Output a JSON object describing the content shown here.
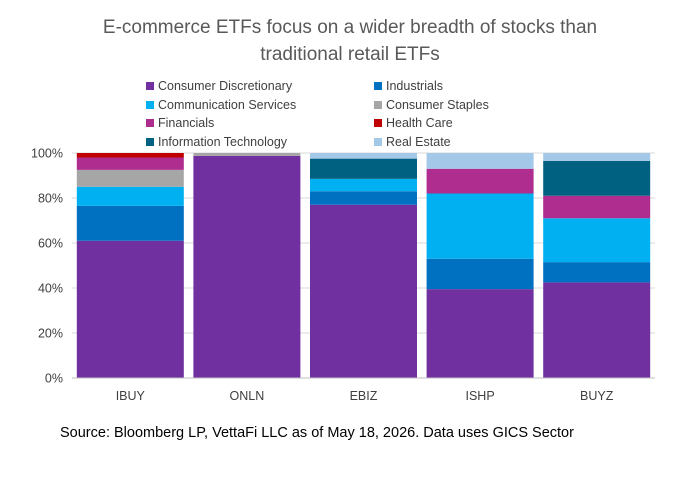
{
  "chart_data": {
    "type": "bar",
    "stacked": true,
    "title_lines": [
      "E-commerce ETFs focus on a wider breadth of stocks than",
      "traditional retail ETFs"
    ],
    "xlabel": "",
    "ylabel": "",
    "ylim": [
      0,
      100
    ],
    "y_ticks": [
      "0%",
      "20%",
      "40%",
      "60%",
      "80%",
      "100%"
    ],
    "y_tick_values": [
      0,
      20,
      40,
      60,
      80,
      100
    ],
    "grid": true,
    "legend_position": "top",
    "categories": [
      "IBUY",
      "ONLN",
      "EBIZ",
      "ISHP",
      "BUYZ"
    ],
    "series": [
      {
        "name": "Consumer Discretionary",
        "color": "#7030A0",
        "values": [
          61,
          98.7,
          77,
          39.5,
          42.5
        ]
      },
      {
        "name": "Industrials",
        "color": "#0070C0",
        "values": [
          15.5,
          0,
          6,
          13.5,
          9
        ]
      },
      {
        "name": "Communication Services",
        "color": "#00B0F0",
        "values": [
          8.5,
          0,
          5.5,
          29,
          19.5
        ]
      },
      {
        "name": "Consumer Staples",
        "color": "#A6A6A6",
        "values": [
          7.5,
          1.3,
          0,
          0,
          0
        ]
      },
      {
        "name": "Financials",
        "color": "#AE2D8F",
        "values": [
          5.5,
          0,
          0,
          11,
          10
        ]
      },
      {
        "name": "Health Care",
        "color": "#C00000",
        "values": [
          2,
          0,
          0,
          0,
          0
        ]
      },
      {
        "name": "Information Technology",
        "color": "#006181",
        "values": [
          0,
          0,
          9,
          0,
          15.5
        ]
      },
      {
        "name": "Real Estate",
        "color": "#A3C8E8",
        "values": [
          0,
          0,
          2.5,
          7,
          3.5
        ]
      }
    ]
  },
  "source_note": "Source: Bloomberg LP, VettaFi LLC as of May 18, 2026. Data uses GICS Sector"
}
